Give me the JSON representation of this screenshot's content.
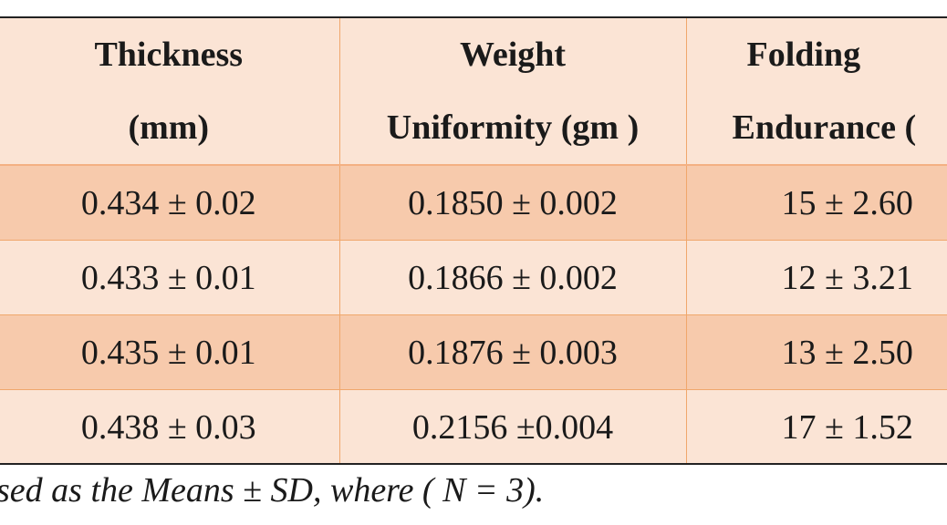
{
  "table": {
    "headers": [
      {
        "line1": "Thickness",
        "line2": "(mm)"
      },
      {
        "line1": "Weight",
        "line2": "Uniformity (gm )"
      },
      {
        "line1": "Folding",
        "line2": "Endurance ("
      }
    ],
    "rows": [
      {
        "thickness": "0.434  ± 0.02",
        "weight": "0.1850  ± 0.002",
        "folding": "15 ± 2.60"
      },
      {
        "thickness": "0.433  ± 0.01",
        "weight": "0.1866  ± 0.002",
        "folding": "12  ± 3.21"
      },
      {
        "thickness": "0.435  ± 0.01",
        "weight": "0.1876  ± 0.003",
        "folding": "13  ± 2.50"
      },
      {
        "thickness": "0.438  ± 0.03",
        "weight": "0.2156  ±0.004",
        "folding": "17  ± 1.52"
      }
    ]
  },
  "footnote": "sed as the Means ± SD, where ( N = 3).",
  "colors": {
    "header_bg": "#fbe4d5",
    "row_dark": "#f7caac",
    "row_light": "#fbe4d5",
    "grid_line": "#f0a76c"
  }
}
